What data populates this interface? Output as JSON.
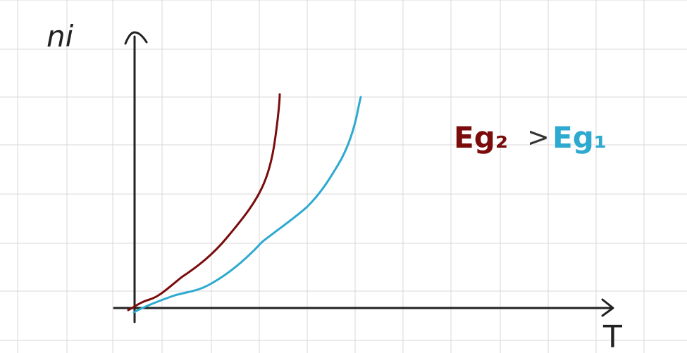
{
  "diagram": {
    "y_axis_label": "ni",
    "x_axis_label": "T",
    "legend": {
      "left": "Eg₂",
      "relation": ">",
      "right": "Eg₁"
    },
    "curves": [
      {
        "label": "Eg₂",
        "color": "#7a0c0c"
      },
      {
        "label": "Eg₁",
        "color": "#2ea9cf"
      }
    ],
    "colors": {
      "grid": "#d9d9d9",
      "axis": "#222222",
      "relation": "#333333"
    }
  }
}
